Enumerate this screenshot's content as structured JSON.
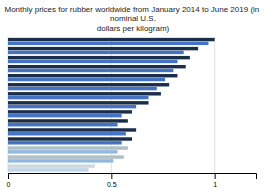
{
  "chart_data": {
    "type": "bar",
    "orientation": "horizontal",
    "title": "Monthly prices for rubber worldwide from January 2014 to June 2019 (in nominal U.S.\ndollars per kilogram)",
    "categories": [
      null,
      null,
      null,
      null,
      null,
      null,
      null,
      null,
      null,
      null,
      null,
      null,
      null,
      null,
      null
    ],
    "series": [
      {
        "values": [
          1.0,
          0.92,
          0.88,
          0.86,
          0.82,
          0.78,
          0.74,
          0.68,
          0.6,
          0.58,
          0.62,
          0.6,
          0.58,
          0.56,
          0.42
        ],
        "colors": [
          "#1a2e4a",
          "#1a2e4a",
          "#1a2e4a",
          "#1a2e4a",
          "#1a2e4a",
          "#1a2e4a",
          "#1a2e4a",
          "#1a2e4a",
          "#1a2e4a",
          "#1a2e4a",
          "#1a2e4a",
          "#1a2e4a",
          "#b0bec5",
          "#b0bec5",
          "#cfd8dc"
        ]
      },
      {
        "values": [
          0.97,
          0.85,
          0.82,
          0.8,
          0.76,
          0.72,
          0.68,
          0.62,
          0.55,
          0.53,
          0.57,
          0.55,
          0.53,
          0.51,
          0.39
        ],
        "colors": [
          "#4472c4",
          "#4472c4",
          "#4472c4",
          "#4472c4",
          "#4472c4",
          "#4472c4",
          "#4472c4",
          "#4472c4",
          "#4472c4",
          "#4472c4",
          "#4472c4",
          "#4472c4",
          "#90b8e0",
          "#90b8e0",
          "#c0d4ec"
        ]
      }
    ],
    "xlim": [
      0,
      1.2
    ],
    "xticks": [
      0,
      0.5,
      1
    ],
    "grid": true,
    "tick_labels": "x"
  }
}
